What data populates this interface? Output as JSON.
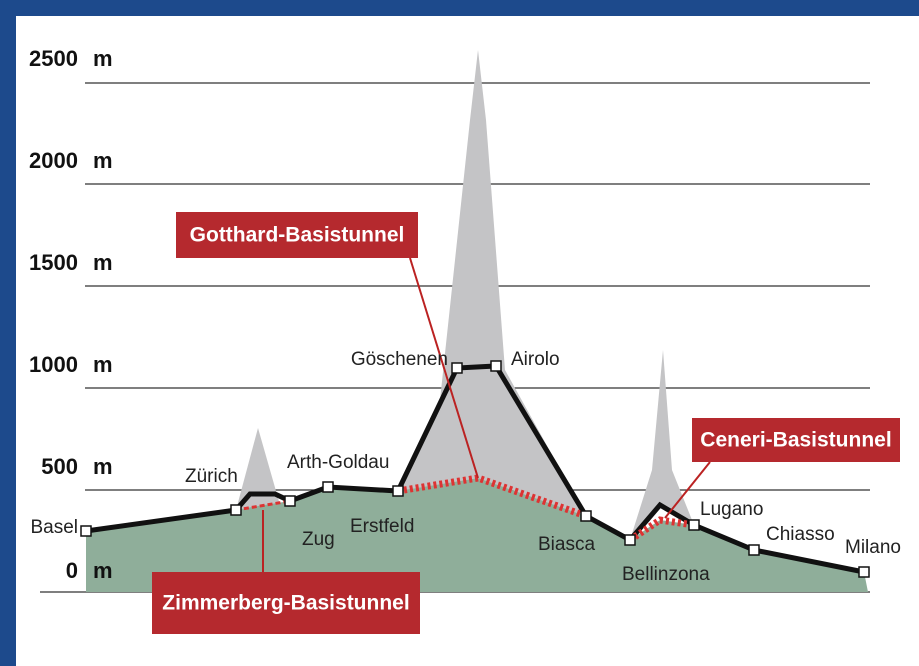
{
  "axis": {
    "labels": [
      {
        "number": "2500",
        "unit": "m"
      },
      {
        "number": "2000",
        "unit": "m"
      },
      {
        "number": "1500",
        "unit": "m"
      },
      {
        "number": "1000",
        "unit": "m"
      },
      {
        "number": "500",
        "unit": "m"
      },
      {
        "number": "0",
        "unit": "m"
      }
    ]
  },
  "stations": [
    "Basel",
    "Zürich",
    "Zug",
    "Arth-Goldau",
    "Erstfeld",
    "Göschenen",
    "Airolo",
    "Biasca",
    "Bellinzona",
    "Lugano",
    "Chiasso",
    "Milano"
  ],
  "tunnels": [
    "Gotthard-Basistunnel",
    "Ceneri-Basistunnel",
    "Zimmerberg-Basistunnel"
  ]
}
